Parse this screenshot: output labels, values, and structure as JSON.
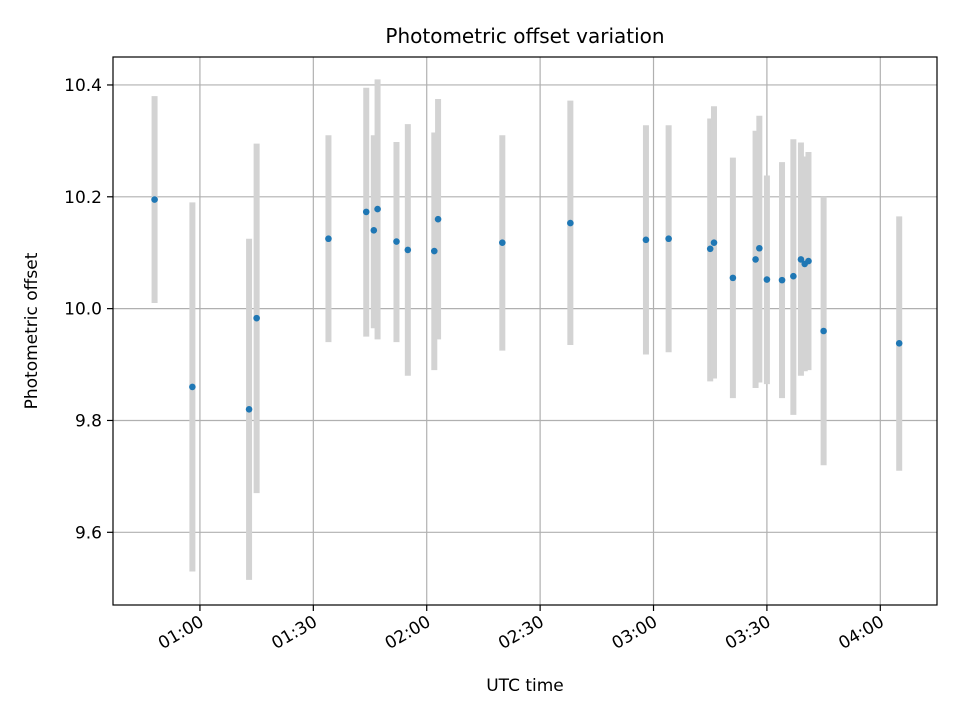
{
  "chart_data": {
    "type": "scatter",
    "title": "Photometric offset variation",
    "xlabel": "UTC time",
    "ylabel": "Photometric offset",
    "x_ticks": [
      "01:00",
      "01:30",
      "02:00",
      "02:30",
      "03:00",
      "03:30",
      "04:00"
    ],
    "y_ticks": [
      "9.6",
      "9.8",
      "10.0",
      "10.2",
      "10.4"
    ],
    "ylim": [
      9.47,
      10.45
    ],
    "xlim": [
      "00:37",
      "04:15"
    ],
    "grid": true,
    "colors": {
      "point": "#1f77b4",
      "errorbar": "#d3d3d3",
      "grid": "#b0b0b0"
    },
    "series": [
      {
        "points": [
          {
            "x": "00:48",
            "y": 10.195,
            "ylo": 10.01,
            "yhi": 10.38
          },
          {
            "x": "00:58",
            "y": 9.86,
            "ylo": 9.53,
            "yhi": 10.19
          },
          {
            "x": "01:13",
            "y": 9.82,
            "ylo": 9.515,
            "yhi": 10.125
          },
          {
            "x": "01:15",
            "y": 9.983,
            "ylo": 9.67,
            "yhi": 10.295
          },
          {
            "x": "01:34",
            "y": 10.125,
            "ylo": 9.94,
            "yhi": 10.31
          },
          {
            "x": "01:44",
            "y": 10.173,
            "ylo": 9.95,
            "yhi": 10.395
          },
          {
            "x": "01:46",
            "y": 10.14,
            "ylo": 9.965,
            "yhi": 10.31
          },
          {
            "x": "01:47",
            "y": 10.178,
            "ylo": 9.945,
            "yhi": 10.41
          },
          {
            "x": "01:52",
            "y": 10.12,
            "ylo": 9.94,
            "yhi": 10.298
          },
          {
            "x": "01:55",
            "y": 10.105,
            "ylo": 9.88,
            "yhi": 10.33
          },
          {
            "x": "02:02",
            "y": 10.103,
            "ylo": 9.89,
            "yhi": 10.315
          },
          {
            "x": "02:03",
            "y": 10.16,
            "ylo": 9.945,
            "yhi": 10.375
          },
          {
            "x": "02:20",
            "y": 10.118,
            "ylo": 9.925,
            "yhi": 10.31
          },
          {
            "x": "02:38",
            "y": 10.153,
            "ylo": 9.935,
            "yhi": 10.372
          },
          {
            "x": "02:58",
            "y": 10.123,
            "ylo": 9.918,
            "yhi": 10.328
          },
          {
            "x": "03:04",
            "y": 10.125,
            "ylo": 9.922,
            "yhi": 10.328
          },
          {
            "x": "03:15",
            "y": 10.107,
            "ylo": 9.87,
            "yhi": 10.34
          },
          {
            "x": "03:16",
            "y": 10.118,
            "ylo": 9.875,
            "yhi": 10.362
          },
          {
            "x": "03:21",
            "y": 10.055,
            "ylo": 9.84,
            "yhi": 10.27
          },
          {
            "x": "03:27",
            "y": 10.088,
            "ylo": 9.858,
            "yhi": 10.318
          },
          {
            "x": "03:28",
            "y": 10.108,
            "ylo": 9.868,
            "yhi": 10.345
          },
          {
            "x": "03:30",
            "y": 10.052,
            "ylo": 9.865,
            "yhi": 10.238
          },
          {
            "x": "03:34",
            "y": 10.051,
            "ylo": 9.84,
            "yhi": 10.262
          },
          {
            "x": "03:37",
            "y": 10.058,
            "ylo": 9.81,
            "yhi": 10.303
          },
          {
            "x": "03:39",
            "y": 10.088,
            "ylo": 9.88,
            "yhi": 10.297
          },
          {
            "x": "03:40",
            "y": 10.08,
            "ylo": 9.888,
            "yhi": 10.272
          },
          {
            "x": "03:41",
            "y": 10.085,
            "ylo": 9.89,
            "yhi": 10.28
          },
          {
            "x": "03:45",
            "y": 9.96,
            "ylo": 9.72,
            "yhi": 10.2
          },
          {
            "x": "04:05",
            "y": 9.938,
            "ylo": 9.71,
            "yhi": 10.165
          }
        ]
      }
    ]
  }
}
